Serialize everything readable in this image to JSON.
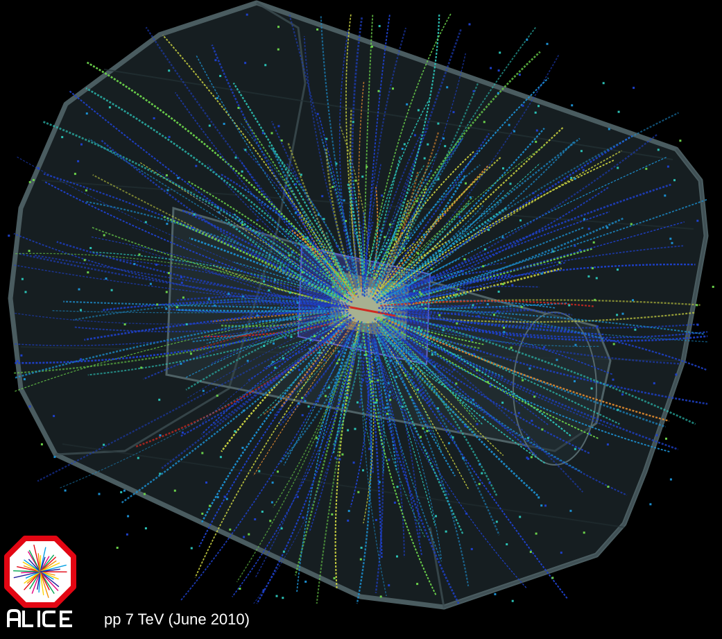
{
  "caption": "pp 7 TeV (June 2010)",
  "logo": {
    "text": "ALICE",
    "ring_color": "#e30613"
  },
  "scene": {
    "subject": "particle collision event display",
    "background": "#000000",
    "detector_color": "#2b3a3e",
    "track_palette": [
      "#1e40c8",
      "#1c8fd0",
      "#2bc0b4",
      "#6ad04a",
      "#c8d040",
      "#e08a30",
      "#d02a20"
    ]
  }
}
